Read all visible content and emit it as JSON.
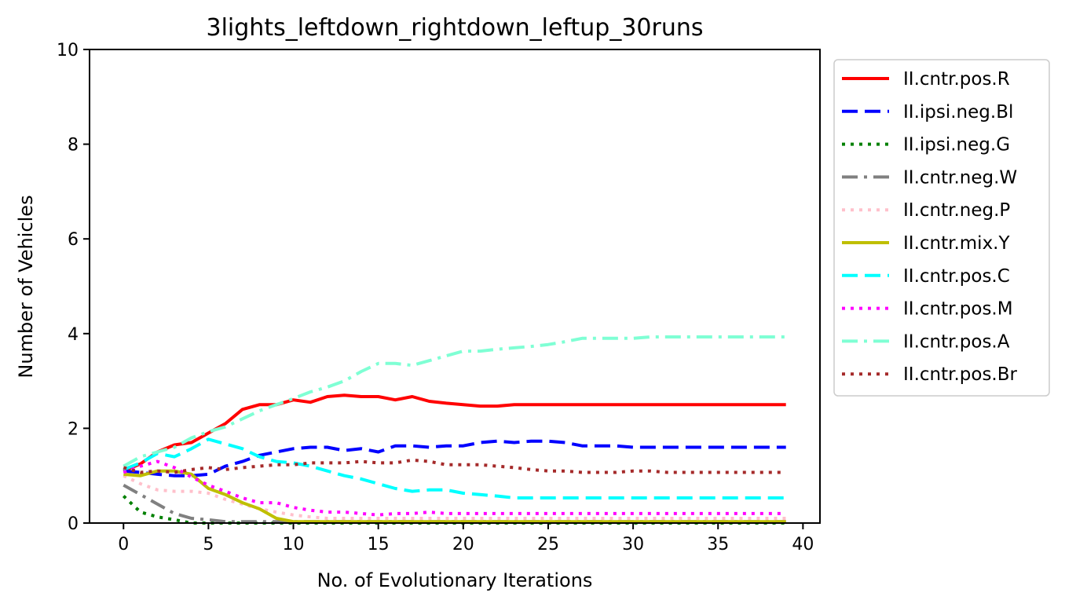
{
  "chart_data": {
    "type": "line",
    "title": "3lights_leftdown_rightdown_leftup_30runs",
    "xlabel": "No. of Evolutionary Iterations",
    "ylabel": "Number of Vehicles",
    "xlim": [
      -2,
      41
    ],
    "ylim": [
      0,
      10
    ],
    "xticks": [
      0,
      5,
      10,
      15,
      20,
      25,
      30,
      35,
      40
    ],
    "yticks": [
      0,
      2,
      4,
      6,
      8,
      10
    ],
    "grid": false,
    "legend_position": "outside-right",
    "series": [
      {
        "name": "II.cntr.pos.R",
        "color": "#ff0000",
        "style": "solid",
        "values": [
          1.1,
          1.25,
          1.5,
          1.65,
          1.7,
          1.9,
          2.1,
          2.4,
          2.5,
          2.5,
          2.6,
          2.55,
          2.67,
          2.7,
          2.67,
          2.67,
          2.6,
          2.67,
          2.57,
          2.53,
          2.5,
          2.47,
          2.47,
          2.5,
          2.5,
          2.5,
          2.5,
          2.5,
          2.5,
          2.5,
          2.5,
          2.5,
          2.5,
          2.5,
          2.5,
          2.5,
          2.5,
          2.5,
          2.5,
          2.5
        ]
      },
      {
        "name": "II.ipsi.neg.Bl",
        "color": "#0000ff",
        "style": "dashed",
        "values": [
          1.1,
          1.07,
          1.03,
          1.0,
          1.0,
          1.03,
          1.2,
          1.3,
          1.43,
          1.5,
          1.57,
          1.6,
          1.6,
          1.53,
          1.57,
          1.5,
          1.63,
          1.63,
          1.6,
          1.63,
          1.63,
          1.7,
          1.73,
          1.7,
          1.73,
          1.73,
          1.7,
          1.63,
          1.63,
          1.63,
          1.6,
          1.6,
          1.6,
          1.6,
          1.6,
          1.6,
          1.6,
          1.6,
          1.6,
          1.6
        ]
      },
      {
        "name": "II.ipsi.neg.G",
        "color": "#008000",
        "style": "dotted",
        "values": [
          0.57,
          0.23,
          0.13,
          0.07,
          0.0,
          0.0,
          0.0,
          0.0,
          0.0,
          0.0,
          0.0,
          0.0,
          0.0,
          0.0,
          0.0,
          0.0,
          0.0,
          0.0,
          0.0,
          0.0,
          0.0,
          0.0,
          0.0,
          0.0,
          0.0,
          0.0,
          0.0,
          0.0,
          0.0,
          0.0,
          0.0,
          0.0,
          0.0,
          0.0,
          0.0,
          0.0,
          0.0,
          0.0,
          0.0,
          0.0
        ]
      },
      {
        "name": "II.cntr.neg.W",
        "color": "#808080",
        "style": "dashdot",
        "values": [
          0.8,
          0.6,
          0.4,
          0.2,
          0.1,
          0.07,
          0.03,
          0.03,
          0.03,
          0.03,
          0.03,
          0.03,
          0.03,
          0.03,
          0.03,
          0.03,
          0.03,
          0.03,
          0.03,
          0.03,
          0.03,
          0.03,
          0.03,
          0.03,
          0.03,
          0.03,
          0.03,
          0.03,
          0.03,
          0.03,
          0.03,
          0.03,
          0.03,
          0.03,
          0.03,
          0.03,
          0.03,
          0.03,
          0.03,
          0.03
        ]
      },
      {
        "name": "II.cntr.neg.P",
        "color": "#ffc0cb",
        "style": "dotted",
        "values": [
          1.0,
          0.83,
          0.7,
          0.67,
          0.67,
          0.63,
          0.5,
          0.4,
          0.3,
          0.23,
          0.17,
          0.13,
          0.1,
          0.1,
          0.1,
          0.1,
          0.1,
          0.1,
          0.1,
          0.1,
          0.1,
          0.1,
          0.1,
          0.1,
          0.1,
          0.1,
          0.1,
          0.1,
          0.1,
          0.1,
          0.1,
          0.1,
          0.1,
          0.1,
          0.1,
          0.1,
          0.1,
          0.1,
          0.1,
          0.1
        ]
      },
      {
        "name": "II.cntr.mix.Y",
        "color": "#bfbf00",
        "style": "solid",
        "values": [
          1.03,
          1.0,
          1.1,
          1.1,
          1.03,
          0.73,
          0.6,
          0.43,
          0.3,
          0.1,
          0.03,
          0.03,
          0.03,
          0.03,
          0.03,
          0.03,
          0.03,
          0.03,
          0.03,
          0.03,
          0.03,
          0.03,
          0.03,
          0.03,
          0.03,
          0.03,
          0.03,
          0.03,
          0.03,
          0.03,
          0.03,
          0.03,
          0.03,
          0.03,
          0.03,
          0.03,
          0.03,
          0.03,
          0.03,
          0.03
        ]
      },
      {
        "name": "II.cntr.pos.C",
        "color": "#00ffff",
        "style": "dashed",
        "values": [
          1.13,
          1.27,
          1.47,
          1.4,
          1.57,
          1.77,
          1.67,
          1.57,
          1.4,
          1.3,
          1.27,
          1.2,
          1.1,
          1.0,
          0.93,
          0.83,
          0.73,
          0.67,
          0.7,
          0.7,
          0.63,
          0.6,
          0.57,
          0.53,
          0.53,
          0.53,
          0.53,
          0.53,
          0.53,
          0.53,
          0.53,
          0.53,
          0.53,
          0.53,
          0.53,
          0.53,
          0.53,
          0.53,
          0.53,
          0.53
        ]
      },
      {
        "name": "II.cntr.pos.M",
        "color": "#ff00ff",
        "style": "dotted",
        "values": [
          1.07,
          1.2,
          1.3,
          1.17,
          0.97,
          0.8,
          0.67,
          0.53,
          0.43,
          0.43,
          0.33,
          0.27,
          0.23,
          0.23,
          0.2,
          0.17,
          0.2,
          0.2,
          0.23,
          0.2,
          0.2,
          0.2,
          0.2,
          0.2,
          0.2,
          0.2,
          0.2,
          0.2,
          0.2,
          0.2,
          0.2,
          0.2,
          0.2,
          0.2,
          0.2,
          0.2,
          0.2,
          0.2,
          0.2,
          0.2
        ]
      },
      {
        "name": "II.cntr.pos.A",
        "color": "#7fffd4",
        "style": "dashdot",
        "values": [
          1.2,
          1.4,
          1.5,
          1.6,
          1.8,
          1.93,
          2.03,
          2.2,
          2.37,
          2.5,
          2.63,
          2.77,
          2.87,
          3.0,
          3.2,
          3.37,
          3.37,
          3.33,
          3.43,
          3.53,
          3.63,
          3.63,
          3.67,
          3.7,
          3.73,
          3.77,
          3.83,
          3.9,
          3.9,
          3.9,
          3.9,
          3.93,
          3.93,
          3.93,
          3.93,
          3.93,
          3.93,
          3.93,
          3.93,
          3.93
        ]
      },
      {
        "name": "II.cntr.pos.Br",
        "color": "#a52a2a",
        "style": "dotted",
        "values": [
          1.17,
          1.07,
          1.1,
          1.07,
          1.13,
          1.17,
          1.13,
          1.17,
          1.2,
          1.23,
          1.23,
          1.27,
          1.27,
          1.27,
          1.3,
          1.27,
          1.27,
          1.33,
          1.3,
          1.23,
          1.23,
          1.23,
          1.2,
          1.17,
          1.13,
          1.1,
          1.1,
          1.07,
          1.07,
          1.07,
          1.1,
          1.1,
          1.07,
          1.07,
          1.07,
          1.07,
          1.07,
          1.07,
          1.07,
          1.07
        ]
      }
    ]
  }
}
